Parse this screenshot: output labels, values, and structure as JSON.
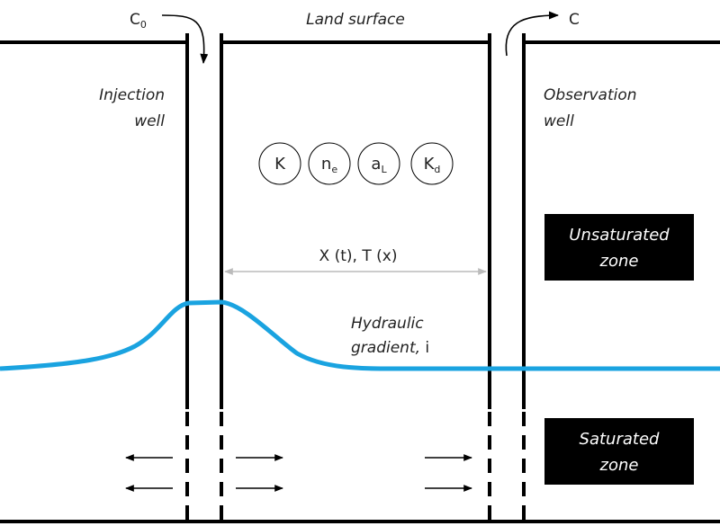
{
  "land_surface": "Land surface",
  "c0": {
    "main": "C",
    "sub": "0"
  },
  "c_out": "C",
  "injection_well": [
    "Injection",
    "well"
  ],
  "observation_well": [
    "Observation",
    "well"
  ],
  "parameters": [
    {
      "main": "K",
      "sub": ""
    },
    {
      "main": "n",
      "sub": "e"
    },
    {
      "main": "a",
      "sub": "L"
    },
    {
      "main": "K",
      "sub": "d"
    }
  ],
  "distance_label": "X (t), T (x)",
  "gradient_label": {
    "line1": "Hydraulic",
    "line2_italic": "gradient,",
    "line2_symbol": "i"
  },
  "unsaturated_zone": [
    "Unsaturated",
    "zone"
  ],
  "saturated_zone": [
    "Saturated",
    "zone"
  ],
  "colors": {
    "water_table": "#1aa3e0",
    "lines": "#000000",
    "zone_box": "#000000",
    "dimension": "#bbbbbb"
  }
}
